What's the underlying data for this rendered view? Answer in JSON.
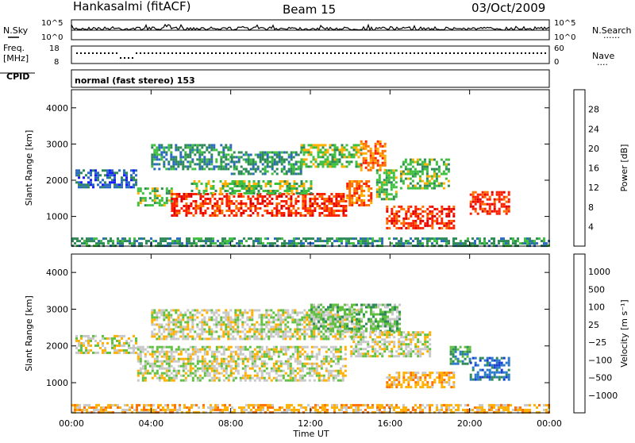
{
  "header": {
    "station": "Hankasalmi (fitACF)",
    "beam": "Beam 15",
    "date": "03/Oct/2009"
  },
  "sky_panel": {
    "left_label": "N.Sky",
    "right_label": "N.Search",
    "right_legend": "......",
    "tick_top_left": "10^5",
    "tick_bottom_left": "10^0",
    "tick_top_right": "10^5",
    "tick_bottom_right": "10^0"
  },
  "freq_panel": {
    "left_label_1": "Freq.",
    "left_label_2": "[MHz]",
    "right_label": "Nave",
    "right_legend": "....",
    "tick_top_left": "18",
    "tick_bottom_left": "8",
    "tick_top_right": "60",
    "tick_bottom_right": "0"
  },
  "cpid_panel": {
    "label": "CPID",
    "text": "normal (fast stereo) 153"
  },
  "chart_data": [
    {
      "type": "heatmap",
      "title": "",
      "xlabel": "Time UT",
      "ylabel": "Slant Range [km]",
      "xlim": [
        0,
        24
      ],
      "ylim": [
        180,
        4500
      ],
      "yticks": [
        "1000",
        "2000",
        "3000",
        "4000"
      ],
      "xticks": [
        "00:00",
        "04:00",
        "08:00",
        "12:00",
        "16:00",
        "20:00",
        "00:00"
      ],
      "colorbar": {
        "label": "Power [dB]",
        "ticks": [
          "4",
          "8",
          "12",
          "16",
          "20",
          "24",
          "28"
        ],
        "colors": [
          "#1a1aff",
          "#2a6ac0",
          "#2e8b57",
          "#40c040",
          "#ffb000",
          "#ff7000",
          "#ff2000",
          "#e00000"
        ]
      },
      "echo_bands": [
        {
          "t0": 0.2,
          "t1": 3.3,
          "r0": 1800,
          "r1": 2300,
          "level": 1
        },
        {
          "t0": 3.3,
          "t1": 5.0,
          "r0": 1300,
          "r1": 1800,
          "level": 3
        },
        {
          "t0": 5.0,
          "t1": 13.8,
          "r0": 1050,
          "r1": 1650,
          "level": 6
        },
        {
          "t0": 6.0,
          "t1": 12.0,
          "r0": 1650,
          "r1": 2000,
          "level": 3
        },
        {
          "t0": 4.0,
          "t1": 8.0,
          "r0": 2300,
          "r1": 3000,
          "level": 2
        },
        {
          "t0": 8.0,
          "t1": 11.5,
          "r0": 2200,
          "r1": 2800,
          "level": 2
        },
        {
          "t0": 11.5,
          "t1": 14.5,
          "r0": 2400,
          "r1": 3000,
          "level": 3
        },
        {
          "t0": 13.8,
          "t1": 15.0,
          "r0": 1300,
          "r1": 2000,
          "level": 5
        },
        {
          "t0": 14.5,
          "t1": 15.8,
          "r0": 2300,
          "r1": 3100,
          "level": 5
        },
        {
          "t0": 15.3,
          "t1": 16.3,
          "r0": 1500,
          "r1": 2300,
          "level": 3
        },
        {
          "t0": 15.8,
          "t1": 19.2,
          "r0": 700,
          "r1": 1300,
          "level": 6
        },
        {
          "t0": 16.5,
          "t1": 19.0,
          "r0": 1800,
          "r1": 2600,
          "level": 3
        },
        {
          "t0": 20.0,
          "t1": 22.0,
          "r0": 1100,
          "r1": 1700,
          "level": 6
        },
        {
          "t0": 0.0,
          "t1": 24.0,
          "r0": 180,
          "r1": 420,
          "level": 2
        }
      ]
    },
    {
      "type": "heatmap",
      "title": "",
      "xlabel": "Time UT",
      "ylabel": "Slant Range [km]",
      "xlim": [
        0,
        24
      ],
      "ylim": [
        180,
        4500
      ],
      "yticks": [
        "1000",
        "2000",
        "3000",
        "4000"
      ],
      "xticks": [
        "00:00",
        "04:00",
        "08:00",
        "12:00",
        "16:00",
        "20:00",
        "00:00"
      ],
      "colorbar": {
        "label": "Velocity [m s⁻¹]",
        "ticks": [
          "1000",
          "500",
          "100",
          "25",
          "−25",
          "−100",
          "−500",
          "−1000"
        ],
        "colors": [
          "#1a3fd0",
          "#2a7acc",
          "#2e8b57",
          "#60c040",
          "#c8c8c8",
          "#ffb000",
          "#ff7000",
          "#ff2020",
          "#e00000"
        ]
      },
      "echo_bands": [
        {
          "t0": 0.2,
          "t1": 3.3,
          "r0": 1800,
          "r1": 2300,
          "level": 4
        },
        {
          "t0": 3.3,
          "t1": 13.8,
          "r0": 1050,
          "r1": 2000,
          "level": 4
        },
        {
          "t0": 4.0,
          "t1": 14.5,
          "r0": 2200,
          "r1": 3000,
          "level": 4
        },
        {
          "t0": 12.0,
          "t1": 16.5,
          "r0": 2400,
          "r1": 3150,
          "level": 3
        },
        {
          "t0": 14.0,
          "t1": 18.0,
          "r0": 1700,
          "r1": 2400,
          "level": 4
        },
        {
          "t0": 15.8,
          "t1": 19.2,
          "r0": 900,
          "r1": 1300,
          "level": 5
        },
        {
          "t0": 19.0,
          "t1": 20.0,
          "r0": 1500,
          "r1": 2000,
          "level": 2
        },
        {
          "t0": 20.0,
          "t1": 22.0,
          "r0": 1100,
          "r1": 1700,
          "level": 1
        },
        {
          "t0": 0.0,
          "t1": 24.0,
          "r0": 180,
          "r1": 420,
          "level": 5
        }
      ]
    }
  ]
}
